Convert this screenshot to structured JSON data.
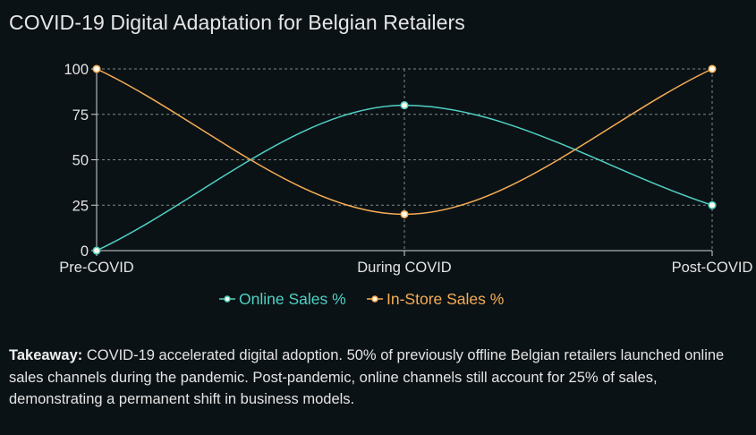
{
  "colors": {
    "background": "#0b1215",
    "online": "#4fd1c5",
    "instore": "#f6ad55",
    "grid": "#7a8a8a",
    "marker_fill": "#fffbea"
  },
  "page": {
    "title": "COVID-19 Digital Adaptation for Belgian Retailers"
  },
  "chart_data": {
    "type": "line",
    "title": "COVID-19 Digital Adaptation for Belgian Retailers",
    "categories": [
      "Pre-COVID",
      "During COVID",
      "Post-COVID"
    ],
    "series": [
      {
        "name": "Online Sales %",
        "values": [
          0,
          80,
          25
        ],
        "color": "#4fd1c5"
      },
      {
        "name": "In-Store Sales %",
        "values": [
          100,
          20,
          100
        ],
        "color": "#f6ad55"
      }
    ],
    "ylim": [
      0,
      100
    ],
    "yticks": [
      "0",
      "25",
      "50",
      "75",
      "100"
    ],
    "grid": true,
    "legend": "bottom",
    "xlabel": "",
    "ylabel": ""
  },
  "takeaway": {
    "label": "Takeaway:",
    "text": " COVID-19 accelerated digital adoption. 50% of previously offline Belgian retailers launched online sales channels during the pandemic. Post-pandemic, online channels still account for 25% of sales, demonstrating a permanent shift in business models."
  }
}
